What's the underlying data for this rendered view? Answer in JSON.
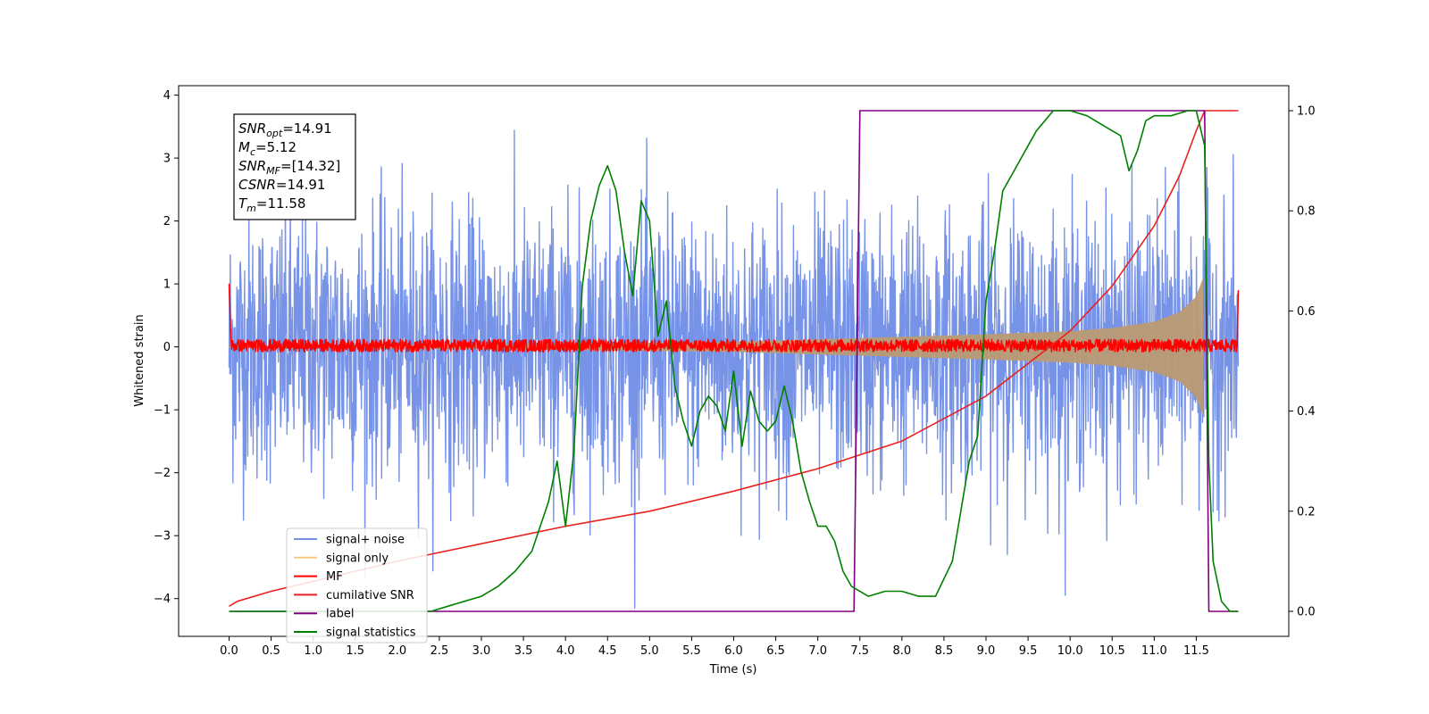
{
  "chart_data": {
    "type": "line",
    "title": "",
    "xlabel": "Time (s)",
    "ylabel": "Whitened strain",
    "xlim": [
      -0.6,
      12.6
    ],
    "ylim": [
      -4.6,
      4.15
    ],
    "y2lim": [
      -0.05,
      1.05
    ],
    "xticks": [
      0.0,
      0.5,
      1.0,
      1.5,
      2.0,
      2.5,
      3.0,
      3.5,
      4.0,
      4.5,
      5.0,
      5.5,
      6.0,
      6.5,
      7.0,
      7.5,
      8.0,
      8.5,
      9.0,
      9.5,
      10.0,
      10.5,
      11.0,
      11.5
    ],
    "xtick_labels": [
      "0.0",
      "0.5",
      "1.0",
      "1.5",
      "2.0",
      "2.5",
      "3.0",
      "3.5",
      "4.0",
      "4.5",
      "5.0",
      "5.5",
      "6.0",
      "6.5",
      "7.0",
      "7.5",
      "8.0",
      "8.5",
      "9.0",
      "9.5",
      "10.0",
      "10.5",
      "11.0",
      "11.5"
    ],
    "yticks": [
      -4,
      -3,
      -2,
      -1,
      0,
      1,
      2,
      3,
      4
    ],
    "ytick_labels": [
      "−4",
      "−3",
      "−2",
      "−1",
      "0",
      "1",
      "2",
      "3",
      "4"
    ],
    "y2ticks": [
      0.0,
      0.2,
      0.4,
      0.6,
      0.8,
      1.0
    ],
    "y2tick_labels": [
      "0.0",
      "0.2",
      "0.4",
      "0.6",
      "0.8",
      "1.0"
    ],
    "grid": false,
    "legend_position": "lower-left",
    "annotation": {
      "lines": [
        {
          "sym": "SNR",
          "sub": "opt",
          "value": "=14.91"
        },
        {
          "sym": "M",
          "sub": "c",
          "value": "=5.12"
        },
        {
          "sym": "SNR",
          "sub": "MF",
          "value": "=[14.32]"
        },
        {
          "sym": "CSNR",
          "sub": "",
          "value": "=14.91"
        },
        {
          "sym": "T",
          "sub": "m",
          "value": "=11.58"
        }
      ]
    },
    "series": [
      {
        "name": "signal+ noise",
        "color": "#7793e8",
        "axis": "left",
        "kind": "noise",
        "x_range": [
          0.0,
          12.0
        ],
        "y_band": [
          -3.5,
          3.5
        ]
      },
      {
        "name": "signal only",
        "color": "#f6c783",
        "axis": "left",
        "kind": "chirp_envelope",
        "x_range": [
          0.0,
          11.58
        ],
        "envelope": {
          "x": [
            0.0,
            2.0,
            4.0,
            6.0,
            7.0,
            8.0,
            9.0,
            10.0,
            10.5,
            11.0,
            11.3,
            11.5,
            11.58
          ],
          "y": [
            0.02,
            0.03,
            0.05,
            0.08,
            0.12,
            0.16,
            0.2,
            0.25,
            0.3,
            0.4,
            0.55,
            0.8,
            1.1
          ]
        }
      },
      {
        "name": "MF",
        "color": "#ff0000",
        "axis": "left",
        "kind": "noise",
        "x_range": [
          0.0,
          12.0
        ],
        "y_band": [
          -0.08,
          0.12
        ]
      },
      {
        "name": "cumilative SNR",
        "color": "#e8211f",
        "axis": "right",
        "x": [
          0.0,
          0.1,
          0.5,
          1.0,
          2.0,
          3.0,
          4.0,
          5.0,
          6.0,
          7.0,
          8.0,
          9.0,
          10.0,
          10.5,
          11.0,
          11.3,
          11.5,
          11.6,
          12.0
        ],
        "y": [
          0.01,
          0.02,
          0.04,
          0.06,
          0.1,
          0.135,
          0.17,
          0.2,
          0.24,
          0.285,
          0.34,
          0.43,
          0.56,
          0.65,
          0.77,
          0.87,
          0.96,
          1.0,
          1.0
        ]
      },
      {
        "name": "label",
        "color": "#800080",
        "axis": "right",
        "x": [
          0.0,
          7.43,
          7.5,
          11.6,
          11.65,
          12.0
        ],
        "y": [
          0.0,
          0.0,
          1.0,
          1.0,
          0.0,
          0.0
        ]
      },
      {
        "name": "signal statistics",
        "color": "#008000",
        "axis": "right",
        "x": [
          0.0,
          0.5,
          1.0,
          1.5,
          2.0,
          2.4,
          2.6,
          2.8,
          3.0,
          3.2,
          3.4,
          3.6,
          3.8,
          3.9,
          4.0,
          4.1,
          4.2,
          4.3,
          4.4,
          4.5,
          4.6,
          4.7,
          4.8,
          4.9,
          5.0,
          5.1,
          5.2,
          5.3,
          5.4,
          5.5,
          5.6,
          5.7,
          5.8,
          5.9,
          6.0,
          6.1,
          6.2,
          6.3,
          6.4,
          6.5,
          6.6,
          6.7,
          6.8,
          6.9,
          7.0,
          7.1,
          7.2,
          7.3,
          7.4,
          7.6,
          7.8,
          8.0,
          8.2,
          8.4,
          8.6,
          8.7,
          8.8,
          8.9,
          9.0,
          9.1,
          9.2,
          9.3,
          9.4,
          9.5,
          9.6,
          9.7,
          9.8,
          9.9,
          10.0,
          10.2,
          10.4,
          10.6,
          10.7,
          10.8,
          10.9,
          11.0,
          11.2,
          11.4,
          11.5,
          11.6,
          11.65,
          11.7,
          11.8,
          11.9,
          12.0
        ],
        "y": [
          0.0,
          0.0,
          0.0,
          0.0,
          0.0,
          0.0,
          0.01,
          0.02,
          0.03,
          0.05,
          0.08,
          0.12,
          0.22,
          0.3,
          0.17,
          0.32,
          0.65,
          0.78,
          0.85,
          0.89,
          0.84,
          0.72,
          0.63,
          0.82,
          0.78,
          0.55,
          0.62,
          0.45,
          0.38,
          0.33,
          0.4,
          0.43,
          0.41,
          0.36,
          0.48,
          0.33,
          0.44,
          0.38,
          0.36,
          0.38,
          0.45,
          0.38,
          0.28,
          0.22,
          0.17,
          0.17,
          0.14,
          0.08,
          0.05,
          0.03,
          0.04,
          0.04,
          0.03,
          0.03,
          0.1,
          0.2,
          0.3,
          0.35,
          0.62,
          0.72,
          0.84,
          0.87,
          0.9,
          0.93,
          0.96,
          0.98,
          1.0,
          1.0,
          1.0,
          0.99,
          0.97,
          0.95,
          0.88,
          0.92,
          0.98,
          0.99,
          0.99,
          1.0,
          1.0,
          0.93,
          0.3,
          0.1,
          0.02,
          0.0,
          0.0
        ]
      }
    ]
  }
}
